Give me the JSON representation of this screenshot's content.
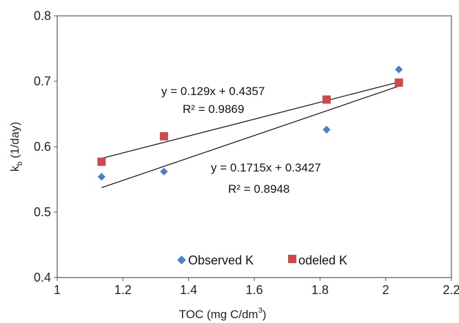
{
  "chart_data": {
    "type": "scatter",
    "xlabel": "TOC (mg C/dm",
    "xlabel_sup": "3",
    "xlabel_end": ")",
    "ylabel": "k",
    "ylabel_sub": "b",
    "ylabel_end": " (1/day)",
    "xlim": [
      1,
      2.2
    ],
    "ylim": [
      0.4,
      0.8
    ],
    "x_ticks": [
      "1",
      "1.2",
      "1.4",
      "1.6",
      "1.8",
      "2",
      "2.2"
    ],
    "y_ticks": [
      "0.4",
      "0.5",
      "0.6",
      "0.7",
      "0.8"
    ],
    "grid": false,
    "legend_position": "bottom-center",
    "series": [
      {
        "name": "Observed K",
        "marker": "diamond",
        "color": "#4a7fc9",
        "x": [
          1.135,
          1.325,
          1.82,
          2.04
        ],
        "y": [
          0.554,
          0.562,
          0.626,
          0.718
        ],
        "trend": {
          "slope": 0.1715,
          "intercept": 0.3427,
          "equation": "y = 0.1715x + 0.3427",
          "r2": "R² = 0.8948"
        }
      },
      {
        "name": "odeled K",
        "marker": "square",
        "color": "#cc4a4a",
        "x": [
          1.135,
          1.325,
          1.82,
          2.04
        ],
        "y": [
          0.577,
          0.616,
          0.672,
          0.698
        ],
        "trend": {
          "slope": 0.129,
          "intercept": 0.4357,
          "equation": "y = 0.129x + 0.4357",
          "r2": "R² = 0.9869"
        }
      }
    ]
  }
}
